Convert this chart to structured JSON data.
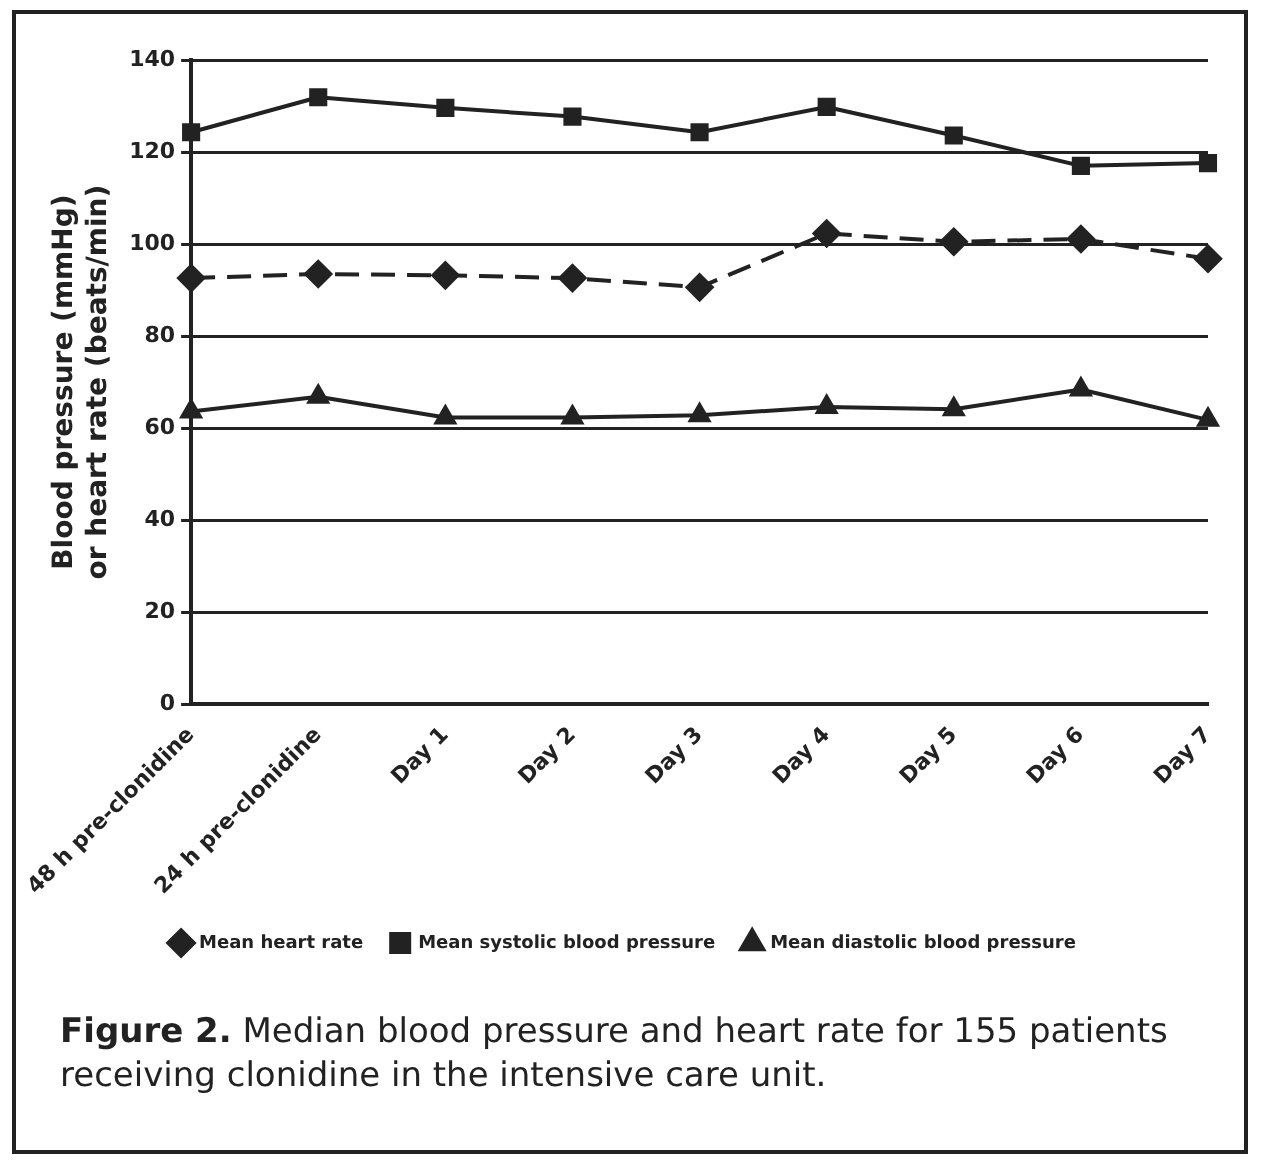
{
  "chart_data": {
    "type": "line",
    "ylabel": "Blood pressure (mmHg)\nor heart rate (beats/min)",
    "categories": [
      "48 h pre-clonidine",
      "24 h pre-clonidine",
      "Day 1",
      "Day 2",
      "Day 3",
      "Day 4",
      "Day 5",
      "Day 6",
      "Day 7"
    ],
    "series": [
      {
        "name": "Mean heart rate",
        "color": "#222222",
        "marker": "diamond",
        "line_style": "dashed",
        "values": [
          92.6,
          93.5,
          93.2,
          92.6,
          90.6,
          102.3,
          100.5,
          101.1,
          96.8
        ]
      },
      {
        "name": "Mean systolic blood pressure",
        "color": "#222222",
        "marker": "square",
        "line_style": "solid",
        "values": [
          124.3,
          131.9,
          129.6,
          127.7,
          124.3,
          129.8,
          123.6,
          117,
          117.6
        ]
      },
      {
        "name": "Mean diastolic blood pressure",
        "color": "#222222",
        "marker": "triangle",
        "line_style": "solid",
        "values": [
          63.6,
          66.8,
          62.3,
          62.3,
          62.8,
          64.6,
          64.1,
          68.4,
          61.8
        ]
      }
    ],
    "ylim": [
      0,
      140
    ],
    "yticks": [
      0,
      20,
      40,
      60,
      80,
      100,
      120,
      140
    ],
    "grid": "y",
    "legend": "bottom",
    "annotations": [
      "Figure 2.",
      "Median blood pressure and heart rate for 155 patients receiving clonidine in the intensive care unit."
    ]
  }
}
